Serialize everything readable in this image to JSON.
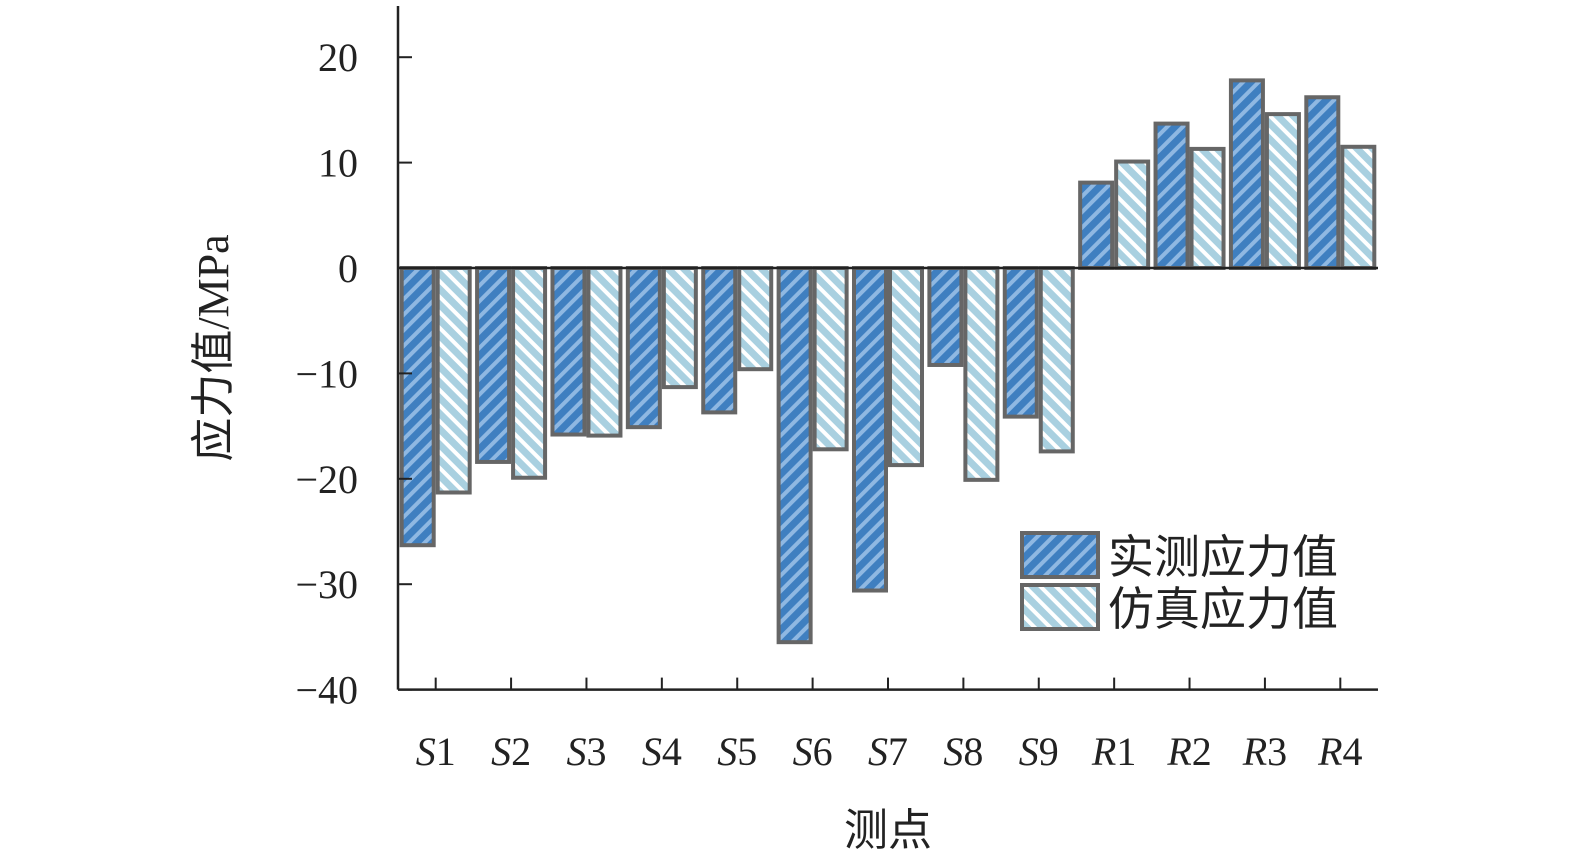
{
  "chart_data": {
    "type": "bar",
    "xlabel": "测点",
    "ylabel": "应力值/MPa",
    "ylim": [
      -40,
      20
    ],
    "yticks": [
      20,
      10,
      0,
      -10,
      -20,
      -30,
      -40
    ],
    "ytick_labels": [
      "20",
      "10",
      "0",
      "−10",
      "−20",
      "−30",
      "−40"
    ],
    "categories": [
      {
        "letter": "S",
        "num": "1"
      },
      {
        "letter": "S",
        "num": "2"
      },
      {
        "letter": "S",
        "num": "3"
      },
      {
        "letter": "S",
        "num": "4"
      },
      {
        "letter": "S",
        "num": "5"
      },
      {
        "letter": "S",
        "num": "6"
      },
      {
        "letter": "S",
        "num": "7"
      },
      {
        "letter": "S",
        "num": "8"
      },
      {
        "letter": "S",
        "num": "9"
      },
      {
        "letter": "R",
        "num": "1"
      },
      {
        "letter": "R",
        "num": "2"
      },
      {
        "letter": "R",
        "num": "3"
      },
      {
        "letter": "R",
        "num": "4"
      }
    ],
    "series": [
      {
        "name": "实测应力值",
        "fill": "#3f7fc0",
        "stripe": "#8fb8e2",
        "values": [
          -26.3,
          -18.4,
          -15.8,
          -15.1,
          -13.7,
          -35.5,
          -30.6,
          -9.2,
          -14.1,
          8.1,
          13.7,
          17.8,
          16.2
        ]
      },
      {
        "name": "仿真应力值",
        "fill": "#a9d0e0",
        "stripe": "#ffffff",
        "values": [
          -21.3,
          -19.9,
          -15.9,
          -11.3,
          -9.6,
          -17.2,
          -18.7,
          -20.1,
          -17.4,
          10.1,
          11.3,
          14.6,
          11.5
        ]
      }
    ],
    "legend_position": "bottom-right",
    "grid": false,
    "edge_color": "#666666"
  }
}
